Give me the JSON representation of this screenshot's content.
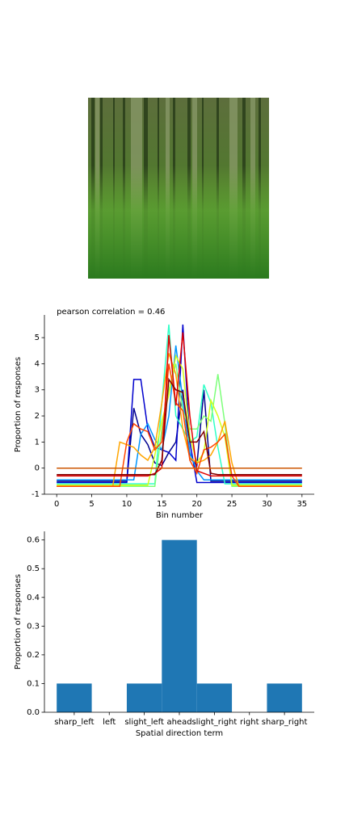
{
  "chart_data": [
    {
      "type": "line",
      "title": "pearson correlation = 0.46",
      "xlabel": "Bin number",
      "ylabel": "Proportion of responses",
      "x": [
        0,
        1,
        2,
        3,
        4,
        5,
        6,
        7,
        8,
        9,
        10,
        11,
        12,
        13,
        14,
        15,
        16,
        17,
        18,
        19,
        20,
        21,
        22,
        23,
        24,
        25,
        26,
        27,
        28,
        29,
        30,
        31,
        32,
        33,
        34,
        35
      ],
      "xlim": [
        -1.75,
        36.75
      ],
      "xticks": [
        0,
        5,
        10,
        15,
        20,
        25,
        30,
        35
      ],
      "ylim": [
        -1.0,
        5.87
      ],
      "yticks": [
        -1,
        0,
        1,
        2,
        3,
        4,
        5
      ],
      "series": [
        {
          "color": "#00008f",
          "values": [
            -0.5,
            -0.5,
            -0.5,
            -0.5,
            -0.5,
            -0.5,
            -0.5,
            -0.5,
            -0.5,
            -0.5,
            -0.5,
            2.3,
            1.3,
            0.9,
            0.2,
            0.1,
            0.6,
            1.0,
            3.0,
            0.4,
            0.1,
            3.0,
            -0.5,
            -0.5,
            -0.5,
            -0.5,
            -0.5,
            -0.5,
            -0.5,
            -0.5,
            -0.5,
            -0.5,
            -0.5,
            -0.5,
            -0.5,
            -0.5
          ]
        },
        {
          "color": "#0000cd",
          "values": [
            -0.55,
            -0.55,
            -0.55,
            -0.55,
            -0.55,
            -0.55,
            -0.55,
            -0.55,
            -0.55,
            -0.55,
            -0.55,
            3.4,
            3.4,
            1.5,
            0.8,
            0.7,
            0.6,
            0.3,
            5.5,
            1.0,
            -0.55,
            -0.55,
            -0.55,
            -0.55,
            -0.55,
            -0.55,
            -0.55,
            -0.55,
            -0.55,
            -0.55,
            -0.55,
            -0.55,
            -0.55,
            -0.55,
            -0.55,
            -0.55
          ]
        },
        {
          "color": "#0096ff",
          "values": [
            -0.45,
            -0.45,
            -0.45,
            -0.45,
            -0.45,
            -0.45,
            -0.45,
            -0.45,
            -0.45,
            -0.45,
            -0.45,
            -0.45,
            1.3,
            1.7,
            1.1,
            0.7,
            2.0,
            4.7,
            2.6,
            0.6,
            -0.1,
            -0.45,
            -0.45,
            -0.45,
            -0.45,
            -0.45,
            -0.45,
            -0.45,
            -0.45,
            -0.45,
            -0.45,
            -0.45,
            -0.45,
            -0.45,
            -0.45,
            -0.45
          ]
        },
        {
          "color": "#30ffc7",
          "values": [
            -0.6,
            -0.6,
            -0.6,
            -0.6,
            -0.6,
            -0.6,
            -0.6,
            -0.6,
            -0.6,
            -0.6,
            -0.6,
            -0.6,
            -0.6,
            -0.6,
            -0.6,
            2.5,
            5.5,
            2.0,
            1.5,
            1.0,
            1.2,
            3.2,
            2.5,
            0.8,
            -0.6,
            -0.6,
            -0.6,
            -0.6,
            -0.6,
            -0.6,
            -0.6,
            -0.6,
            -0.6,
            -0.6,
            -0.6,
            -0.6
          ]
        },
        {
          "color": "#7dff7a",
          "values": [
            -0.7,
            -0.7,
            -0.7,
            -0.7,
            -0.7,
            -0.7,
            -0.7,
            -0.7,
            -0.7,
            -0.7,
            -0.7,
            -0.7,
            -0.7,
            -0.7,
            -0.7,
            1.5,
            3.0,
            4.0,
            2.2,
            1.5,
            1.5,
            2.0,
            1.8,
            3.6,
            1.7,
            -0.7,
            -0.7,
            -0.7,
            -0.7,
            -0.7,
            -0.7,
            -0.7,
            -0.7,
            -0.7,
            -0.7,
            -0.7
          ]
        },
        {
          "color": "#d4ff1a",
          "values": [
            -0.65,
            -0.65,
            -0.65,
            -0.65,
            -0.65,
            -0.65,
            -0.65,
            -0.65,
            -0.65,
            -0.65,
            -0.65,
            -0.65,
            -0.65,
            -0.65,
            0.5,
            1.8,
            2.8,
            4.3,
            3.8,
            1.2,
            0.2,
            0.6,
            2.6,
            2.0,
            1.2,
            -0.65,
            -0.65,
            -0.65,
            -0.65,
            -0.65,
            -0.65,
            -0.65,
            -0.65,
            -0.65,
            -0.65,
            -0.65
          ]
        },
        {
          "color": "#ffa500",
          "values": [
            -0.7,
            -0.7,
            -0.7,
            -0.7,
            -0.7,
            -0.7,
            -0.7,
            -0.7,
            -0.7,
            1.0,
            0.9,
            0.8,
            0.5,
            0.3,
            0.8,
            2.5,
            4.4,
            3.6,
            1.5,
            0.4,
            0.2,
            0.3,
            0.5,
            1.0,
            1.8,
            0.2,
            -0.7,
            -0.7,
            -0.7,
            -0.7,
            -0.7,
            -0.7,
            -0.7,
            -0.7,
            -0.7,
            -0.7
          ]
        },
        {
          "color": "#ff4500",
          "values": [
            -0.7,
            -0.7,
            -0.7,
            -0.7,
            -0.7,
            -0.7,
            -0.7,
            -0.7,
            -0.7,
            -0.7,
            1.0,
            1.7,
            1.5,
            1.4,
            0.7,
            1.0,
            4.0,
            2.5,
            2.2,
            0.3,
            -0.2,
            0.7,
            0.8,
            1.0,
            1.3,
            -0.3,
            -0.7,
            -0.7,
            -0.7,
            -0.7,
            -0.7,
            -0.7,
            -0.7,
            -0.7,
            -0.7,
            -0.7
          ]
        },
        {
          "color": "#e00000",
          "values": [
            -0.3,
            -0.3,
            -0.3,
            -0.3,
            -0.3,
            -0.3,
            -0.3,
            -0.3,
            -0.3,
            -0.3,
            -0.3,
            -0.3,
            -0.3,
            -0.3,
            -0.2,
            0.0,
            5.1,
            2.4,
            5.2,
            2.0,
            -0.1,
            -0.2,
            -0.3,
            -0.3,
            -0.3,
            -0.3,
            -0.3,
            -0.3,
            -0.3,
            -0.3,
            -0.3,
            -0.3,
            -0.3,
            -0.3,
            -0.3,
            -0.3
          ]
        },
        {
          "color": "#800000",
          "values": [
            -0.25,
            -0.25,
            -0.25,
            -0.25,
            -0.25,
            -0.25,
            -0.25,
            -0.25,
            -0.25,
            -0.25,
            -0.25,
            -0.25,
            -0.25,
            -0.25,
            -0.25,
            0.3,
            3.4,
            3.0,
            2.9,
            1.0,
            1.0,
            1.4,
            -0.2,
            -0.25,
            -0.25,
            -0.25,
            -0.25,
            -0.25,
            -0.25,
            -0.25,
            -0.25,
            -0.25,
            -0.25,
            -0.25,
            -0.25,
            -0.25
          ]
        },
        {
          "color": "#cc5500",
          "values": [
            0,
            0,
            0,
            0,
            0,
            0,
            0,
            0,
            0,
            0,
            0,
            0,
            0,
            0,
            0,
            0,
            0,
            0,
            0,
            0,
            0,
            0,
            0,
            0,
            0,
            0,
            0,
            0,
            0,
            0,
            0,
            0,
            0,
            0,
            0,
            0
          ]
        }
      ]
    },
    {
      "type": "bar",
      "xlabel": "Spatial direction term",
      "ylabel": "Proportion of responses",
      "categories": [
        "sharp_left",
        "left",
        "slight_left",
        "ahead",
        "slight_right",
        "right",
        "sharp_right"
      ],
      "values": [
        0.1,
        0,
        0.1,
        0.6,
        0.1,
        0,
        0.1
      ],
      "color": "#1f77b4",
      "xlim": [
        -0.85,
        6.85
      ],
      "ylim": [
        0,
        0.63
      ],
      "yticks": [
        {
          "value": 0,
          "label": "0.0"
        },
        {
          "value": 0.1,
          "label": "0.1"
        },
        {
          "value": 0.2,
          "label": "0.2"
        },
        {
          "value": 0.3,
          "label": "0.3"
        },
        {
          "value": 0.4,
          "label": "0.4"
        },
        {
          "value": 0.5,
          "label": "0.5"
        },
        {
          "value": 0.6,
          "label": "0.6"
        }
      ]
    }
  ]
}
